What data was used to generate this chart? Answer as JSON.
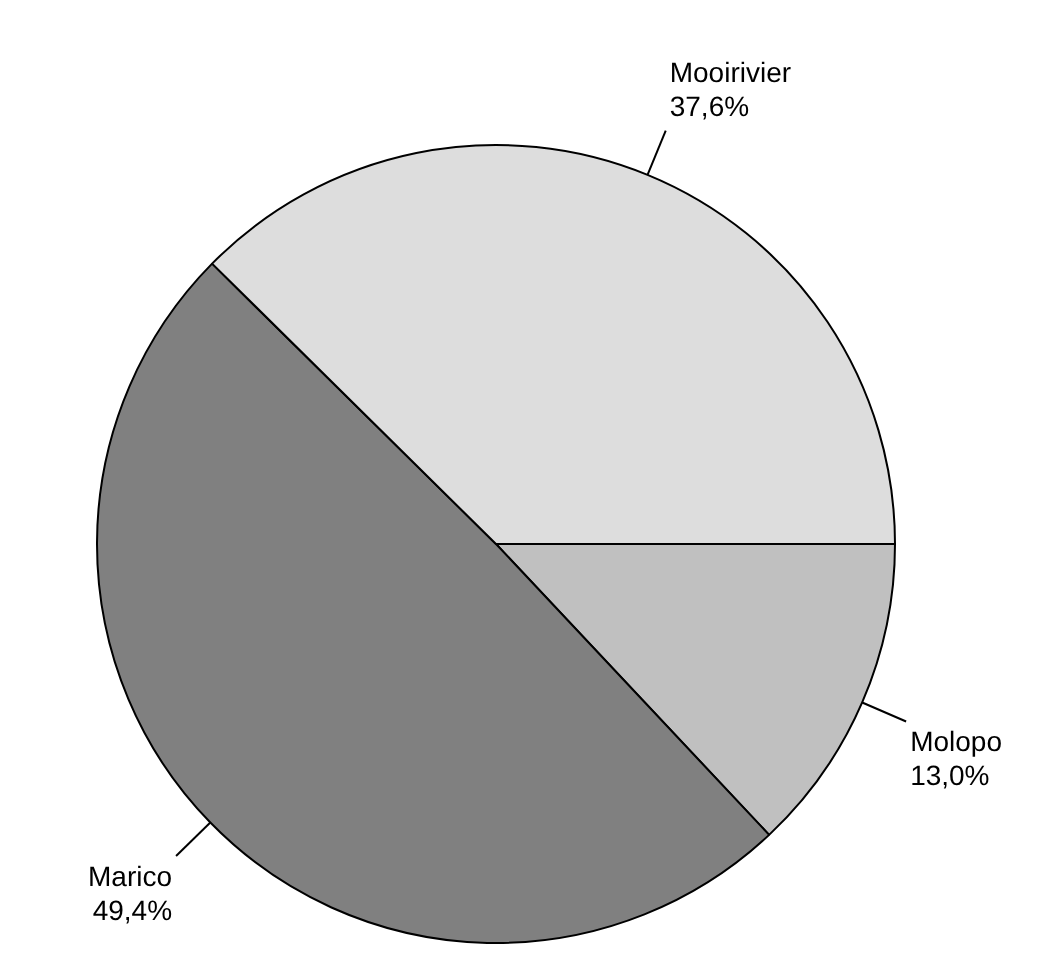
{
  "chart_data": {
    "type": "pie",
    "categories": [
      "Molopo",
      "Marico",
      "Mooirivier"
    ],
    "values": [
      13.0,
      49.4,
      37.6
    ],
    "value_labels": [
      "13,0%",
      "49,4%",
      "37,6%"
    ],
    "colors": [
      "#c0c0c0",
      "#808080",
      "#dddddd"
    ],
    "legend": false
  }
}
